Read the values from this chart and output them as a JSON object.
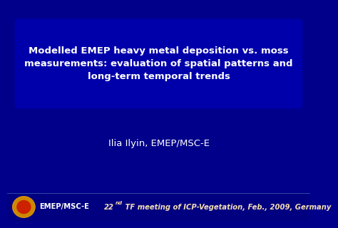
{
  "bg_color": "#00008B",
  "title_box_color": "#0000AA",
  "title_line1": "Modelled EMEP heavy metal deposition vs. moss",
  "title_line2": "measurements: evaluation of spatial patterns and",
  "title_line3": "long-term temporal trends",
  "author": "Ilia Ilyin, EMEP/MSC-E",
  "footer_label": "EMEP/MSC-E",
  "footer_meeting_text": " TF meeting of ICP-Vegetation, Feb., 2009, Germany",
  "text_color": "#FFFFFF",
  "footer_bg": "#000080",
  "footer_text_white": "#FFFFFF",
  "footer_text_italic": "#F5DEB3",
  "logo_outer_color": "#CC8800",
  "logo_inner_color": "#CC2200",
  "title_fontsize": 9.5,
  "author_fontsize": 9.5,
  "footer_fontsize": 7.2,
  "footer_super_fontsize": 5.0
}
